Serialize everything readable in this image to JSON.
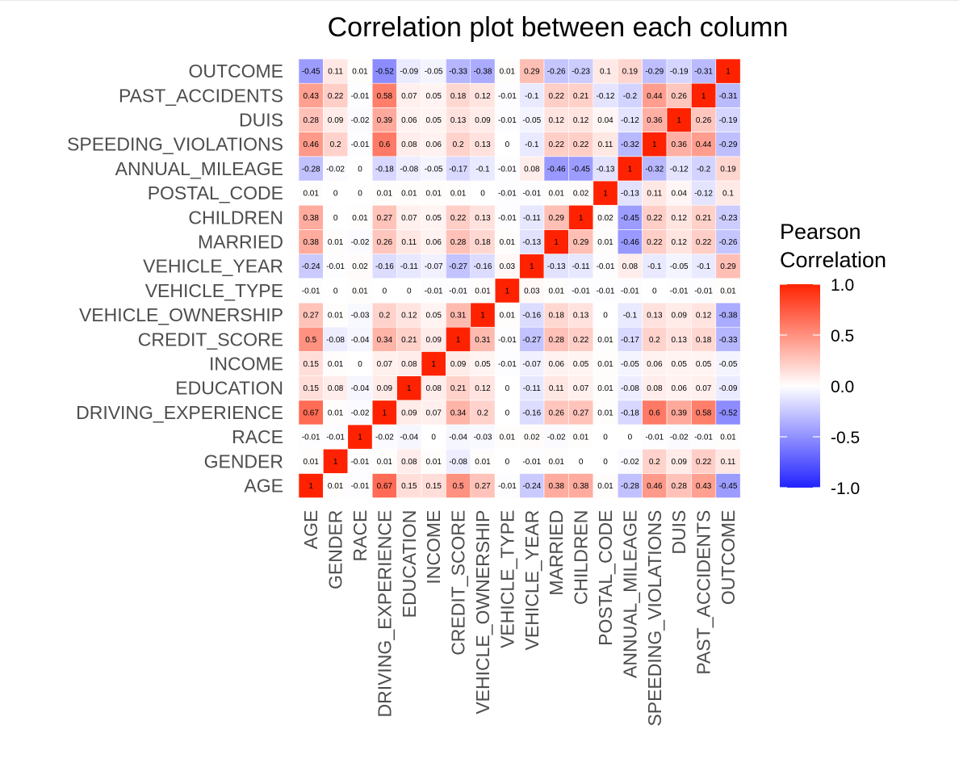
{
  "chart_data": {
    "type": "heatmap",
    "title": "Correlation plot between each column",
    "variables": [
      "AGE",
      "GENDER",
      "RACE",
      "DRIVING_EXPERIENCE",
      "EDUCATION",
      "INCOME",
      "CREDIT_SCORE",
      "VEHICLE_OWNERSHIP",
      "VEHICLE_TYPE",
      "VEHICLE_YEAR",
      "MARRIED",
      "CHILDREN",
      "POSTAL_CODE",
      "ANNUAL_MILEAGE",
      "SPEEDING_VIOLATIONS",
      "DUIS",
      "PAST_ACCIDENTS",
      "OUTCOME"
    ],
    "matrix": [
      [
        1,
        0.01,
        -0.01,
        0.67,
        0.15,
        0.15,
        0.5,
        0.27,
        -0.01,
        -0.24,
        0.38,
        0.38,
        0.01,
        -0.28,
        0.46,
        0.28,
        0.43,
        -0.45
      ],
      [
        0.01,
        1,
        -0.01,
        0.01,
        0.08,
        0.01,
        -0.08,
        0.01,
        0,
        -0.01,
        0.01,
        0,
        0,
        -0.02,
        0.2,
        0.09,
        0.22,
        0.11
      ],
      [
        -0.01,
        -0.01,
        1,
        -0.02,
        -0.04,
        0,
        -0.04,
        -0.03,
        0.01,
        0.02,
        -0.02,
        0.01,
        0,
        0,
        -0.01,
        -0.02,
        -0.01,
        0.01
      ],
      [
        0.67,
        0.01,
        -0.02,
        1,
        0.09,
        0.07,
        0.34,
        0.2,
        0,
        -0.16,
        0.26,
        0.27,
        0.01,
        -0.18,
        0.6,
        0.39,
        0.58,
        -0.52
      ],
      [
        0.15,
        0.08,
        -0.04,
        0.09,
        1,
        0.08,
        0.21,
        0.12,
        0,
        -0.11,
        0.11,
        0.07,
        0.01,
        -0.08,
        0.08,
        0.06,
        0.07,
        -0.09
      ],
      [
        0.15,
        0.01,
        0,
        0.07,
        0.08,
        1,
        0.09,
        0.05,
        -0.01,
        -0.07,
        0.06,
        0.05,
        0.01,
        -0.05,
        0.06,
        0.05,
        0.05,
        -0.05
      ],
      [
        0.5,
        -0.08,
        -0.04,
        0.34,
        0.21,
        0.09,
        1,
        0.31,
        -0.01,
        -0.27,
        0.28,
        0.22,
        0.01,
        -0.17,
        0.2,
        0.13,
        0.18,
        -0.33
      ],
      [
        0.27,
        0.01,
        -0.03,
        0.2,
        0.12,
        0.05,
        0.31,
        1,
        0.01,
        -0.16,
        0.18,
        0.13,
        0,
        -0.1,
        0.13,
        0.09,
        0.12,
        -0.38
      ],
      [
        -0.01,
        0,
        0.01,
        0,
        0,
        -0.01,
        -0.01,
        0.01,
        1,
        0.03,
        0.01,
        -0.01,
        -0.01,
        -0.01,
        0,
        -0.01,
        -0.01,
        0.01
      ],
      [
        -0.24,
        -0.01,
        0.02,
        -0.16,
        -0.11,
        -0.07,
        -0.27,
        -0.16,
        0.03,
        1,
        -0.13,
        -0.11,
        -0.01,
        0.08,
        -0.1,
        -0.05,
        -0.1,
        0.29
      ],
      [
        0.38,
        0.01,
        -0.02,
        0.26,
        0.11,
        0.06,
        0.28,
        0.18,
        0.01,
        -0.13,
        1,
        0.29,
        0.01,
        -0.46,
        0.22,
        0.12,
        0.22,
        -0.26
      ],
      [
        0.38,
        0,
        0.01,
        0.27,
        0.07,
        0.05,
        0.22,
        0.13,
        -0.01,
        -0.11,
        0.29,
        1,
        0.02,
        -0.45,
        0.22,
        0.12,
        0.21,
        -0.23
      ],
      [
        0.01,
        0,
        0,
        0.01,
        0.01,
        0.01,
        0.01,
        0,
        -0.01,
        -0.01,
        0.01,
        0.02,
        1,
        -0.13,
        0.11,
        0.04,
        -0.12,
        0.1
      ],
      [
        -0.28,
        -0.02,
        0,
        -0.18,
        -0.08,
        -0.05,
        -0.17,
        -0.1,
        -0.01,
        0.08,
        -0.46,
        -0.45,
        -0.13,
        1,
        -0.32,
        -0.12,
        -0.2,
        0.19
      ],
      [
        0.46,
        0.2,
        -0.01,
        0.6,
        0.08,
        0.06,
        0.2,
        0.13,
        0,
        -0.1,
        0.22,
        0.22,
        0.11,
        -0.32,
        1,
        0.36,
        0.44,
        -0.29
      ],
      [
        0.28,
        0.09,
        -0.02,
        0.39,
        0.06,
        0.05,
        0.13,
        0.09,
        -0.01,
        -0.05,
        0.12,
        0.12,
        0.04,
        -0.12,
        0.36,
        1,
        0.26,
        -0.19
      ],
      [
        0.43,
        0.22,
        -0.01,
        0.58,
        0.07,
        0.05,
        0.18,
        0.12,
        -0.01,
        -0.1,
        0.22,
        0.21,
        -0.12,
        -0.2,
        0.44,
        0.26,
        1,
        -0.31
      ],
      [
        -0.45,
        0.11,
        0.01,
        -0.52,
        -0.09,
        -0.05,
        -0.33,
        -0.38,
        0.01,
        0.29,
        -0.26,
        -0.23,
        0.1,
        0.19,
        -0.29,
        -0.19,
        -0.31,
        1
      ]
    ],
    "legend": {
      "title_line1": "Pearson",
      "title_line2": "Correlation",
      "ticks": [
        "1.0",
        "0.5",
        "0.0",
        "-0.5",
        "-1.0"
      ],
      "tick_values": [
        1,
        0.5,
        0,
        -0.5,
        -1
      ],
      "range": [
        -1,
        1
      ],
      "placement": "right"
    },
    "colors": {
      "high": "#ff2200",
      "mid": "#ffffff",
      "low": "#2222ff"
    },
    "grid": false
  }
}
